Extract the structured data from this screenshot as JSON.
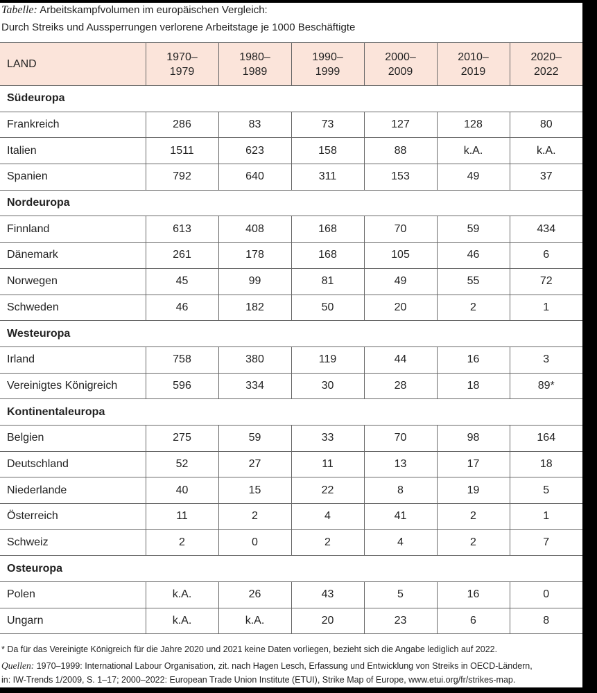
{
  "title": {
    "label": "Tabelle:",
    "line1": "Arbeitskampfvolumen im europäischen Vergleich:",
    "line2": "Durch Streiks und Aussperrungen verlorene Arbeitstage je 1000 Beschäftigte"
  },
  "headers": [
    "LAND",
    "1970–\n1979",
    "1980–\n1989",
    "1990–\n1999",
    "2000–\n2009",
    "2010–\n2019",
    "2020–\n2022"
  ],
  "sections": [
    {
      "name": "Südeuropa",
      "rows": [
        [
          "Frankreich",
          "286",
          "83",
          "73",
          "127",
          "128",
          "80"
        ],
        [
          "Italien",
          "1511",
          "623",
          "158",
          "88",
          "k.A.",
          "k.A."
        ],
        [
          "Spanien",
          "792",
          "640",
          "311",
          "153",
          "49",
          "37"
        ]
      ]
    },
    {
      "name": "Nordeuropa",
      "rows": [
        [
          "Finnland",
          "613",
          "408",
          "168",
          "70",
          "59",
          "434"
        ],
        [
          "Dänemark",
          "261",
          "178",
          "168",
          "105",
          "46",
          "6"
        ],
        [
          "Norwegen",
          "45",
          "99",
          "81",
          "49",
          "55",
          "72"
        ],
        [
          "Schweden",
          "46",
          "182",
          "50",
          "20",
          "2",
          "1"
        ]
      ]
    },
    {
      "name": "Westeuropa",
      "rows": [
        [
          "Irland",
          "758",
          "380",
          "119",
          "44",
          "16",
          "3"
        ],
        [
          "Vereinigtes Königreich",
          "596",
          "334",
          "30",
          "28",
          "18",
          "89*"
        ]
      ]
    },
    {
      "name": "Kontinentaleuropa",
      "rows": [
        [
          "Belgien",
          "275",
          "59",
          "33",
          "70",
          "98",
          "164"
        ],
        [
          "Deutschland",
          "52",
          "27",
          "11",
          "13",
          "17",
          "18"
        ],
        [
          "Niederlande",
          "40",
          "15",
          "22",
          "8",
          "19",
          "5"
        ],
        [
          "Österreich",
          "11",
          "2",
          "4",
          "41",
          "2",
          "1"
        ],
        [
          "Schweiz",
          "2",
          "0",
          "2",
          "4",
          "2",
          "7"
        ]
      ]
    },
    {
      "name": "Osteuropa",
      "rows": [
        [
          "Polen",
          "k.A.",
          "26",
          "43",
          "5",
          "16",
          "0"
        ],
        [
          "Ungarn",
          "k.A.",
          "k.A.",
          "20",
          "23",
          "6",
          "8"
        ]
      ]
    }
  ],
  "footnote": "* Da für das Vereinigte Königreich für die Jahre 2020 und 2021 keine Daten vorliegen, bezieht sich die Angabe lediglich auf 2022.",
  "sources": {
    "label": "Quellen:",
    "line1": "1970–1999: International Labour Organisation, zit. nach Hagen Lesch, Erfassung und Entwicklung von Streiks in OECD-Ländern,",
    "line2": "in: IW-Trends 1/2009, S. 1–17; 2000–2022: European Trade Union Institute (ETUI), Strike Map of Europe, www.etui.org/fr/strikes-map."
  }
}
